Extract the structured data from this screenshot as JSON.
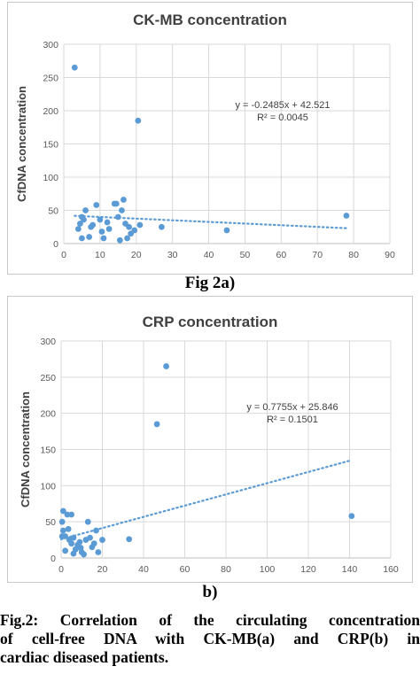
{
  "chart_data": [
    {
      "type": "scatter",
      "title": "CK-MB concentration",
      "ylabel": "CfDNA concentration",
      "xlabel": "",
      "xlim": [
        0,
        90
      ],
      "ylim": [
        0,
        300
      ],
      "xticks": [
        0,
        10,
        20,
        30,
        40,
        50,
        60,
        70,
        80,
        90
      ],
      "yticks": [
        0,
        50,
        100,
        150,
        200,
        250,
        300
      ],
      "grid": true,
      "points": [
        {
          "x": 3,
          "y": 265
        },
        {
          "x": 20.5,
          "y": 185
        },
        {
          "x": 78,
          "y": 42
        },
        {
          "x": 45,
          "y": 20
        },
        {
          "x": 27,
          "y": 25
        },
        {
          "x": 4,
          "y": 22
        },
        {
          "x": 4.5,
          "y": 30
        },
        {
          "x": 5,
          "y": 40
        },
        {
          "x": 5.5,
          "y": 36
        },
        {
          "x": 6,
          "y": 50
        },
        {
          "x": 5,
          "y": 8
        },
        {
          "x": 7,
          "y": 10
        },
        {
          "x": 8,
          "y": 28
        },
        {
          "x": 9,
          "y": 58
        },
        {
          "x": 10,
          "y": 36
        },
        {
          "x": 10.5,
          "y": 18
        },
        {
          "x": 11,
          "y": 8
        },
        {
          "x": 12,
          "y": 32
        },
        {
          "x": 12.5,
          "y": 22
        },
        {
          "x": 14,
          "y": 60
        },
        {
          "x": 14.5,
          "y": 60
        },
        {
          "x": 15,
          "y": 40
        },
        {
          "x": 16,
          "y": 50
        },
        {
          "x": 16.5,
          "y": 66
        },
        {
          "x": 17,
          "y": 30
        },
        {
          "x": 17.5,
          "y": 8
        },
        {
          "x": 18,
          "y": 25
        },
        {
          "x": 18.5,
          "y": 15
        },
        {
          "x": 19.5,
          "y": 20
        },
        {
          "x": 15.5,
          "y": 5
        },
        {
          "x": 21,
          "y": 28
        },
        {
          "x": 7.5,
          "y": 25
        }
      ],
      "trendline": {
        "slope": -0.2485,
        "intercept": 42.521,
        "x_range": [
          3,
          78
        ]
      },
      "annotations": {
        "equation": "y = -0.2485x + 42.521",
        "r_squared": "R² = 0.0045"
      }
    },
    {
      "type": "scatter",
      "title": "CRP concentration",
      "ylabel": "CfDNA concentration",
      "xlabel": "",
      "xlim": [
        0,
        160
      ],
      "ylim": [
        0,
        300
      ],
      "xticks": [
        0,
        20,
        40,
        60,
        80,
        100,
        120,
        140,
        160
      ],
      "yticks": [
        0,
        50,
        100,
        150,
        200,
        250,
        300
      ],
      "grid": true,
      "points": [
        {
          "x": 51,
          "y": 265
        },
        {
          "x": 46.5,
          "y": 185
        },
        {
          "x": 141,
          "y": 58
        },
        {
          "x": 33,
          "y": 26
        },
        {
          "x": 1,
          "y": 65
        },
        {
          "x": 3,
          "y": 60
        },
        {
          "x": 5,
          "y": 60
        },
        {
          "x": 0.5,
          "y": 50
        },
        {
          "x": 1,
          "y": 38
        },
        {
          "x": 0.5,
          "y": 30
        },
        {
          "x": 2,
          "y": 30
        },
        {
          "x": 3.5,
          "y": 40
        },
        {
          "x": 4,
          "y": 25
        },
        {
          "x": 5,
          "y": 20
        },
        {
          "x": 6,
          "y": 28
        },
        {
          "x": 7,
          "y": 12
        },
        {
          "x": 8,
          "y": 18
        },
        {
          "x": 9,
          "y": 22
        },
        {
          "x": 10,
          "y": 8
        },
        {
          "x": 11,
          "y": 5
        },
        {
          "x": 12,
          "y": 25
        },
        {
          "x": 13,
          "y": 50
        },
        {
          "x": 14,
          "y": 28
        },
        {
          "x": 16,
          "y": 20
        },
        {
          "x": 17,
          "y": 38
        },
        {
          "x": 18,
          "y": 8
        },
        {
          "x": 20,
          "y": 25
        },
        {
          "x": 2,
          "y": 10
        },
        {
          "x": 6,
          "y": 6
        },
        {
          "x": 9.5,
          "y": 14
        },
        {
          "x": 15,
          "y": 15
        }
      ],
      "trendline": {
        "slope": 0.7755,
        "intercept": 25.846,
        "x_range": [
          0,
          141
        ]
      },
      "annotations": {
        "equation": "y = 0.7755x + 25.846",
        "r_squared": "R² = 0.1501"
      }
    }
  ],
  "sublabels": {
    "a": "Fig 2a)",
    "b": "b)"
  },
  "caption": {
    "line1": "Fig.2: Correlation of the circulating concentration",
    "line2": "of cell-free DNA with CK-MB(a) and CRP(b) in",
    "line3": "cardiac diseased patients."
  },
  "colors": {
    "points": "#5b9bd5",
    "grid": "#d9d9d9",
    "text": "#404040"
  }
}
